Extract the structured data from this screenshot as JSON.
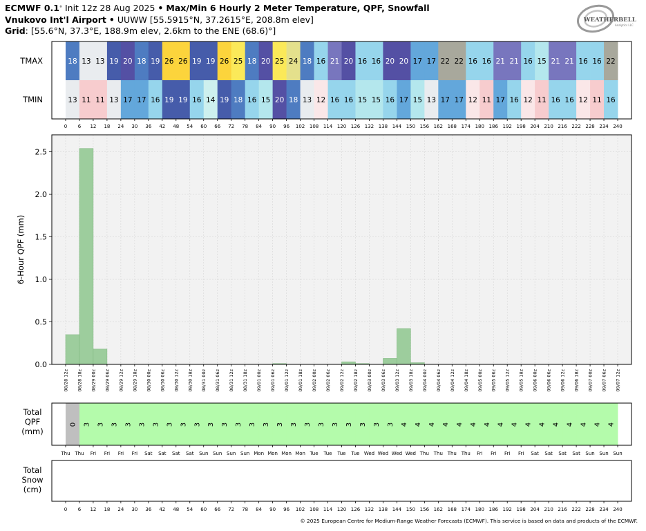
{
  "header": {
    "model": "ECMWF 0.1",
    "init": "Init 12z 28 Aug 2025",
    "product": "Max/Min 6 Hourly 2 Meter Temperature,  QPF,  Snowfall",
    "station_name": "Vnukovo Int'l Airport",
    "station_id": "UUWW",
    "station_coords": "[55.5915°N, 37.2615°E, 208.8m elev]",
    "grid_label": "Grid",
    "grid_info": "[55.6°N, 37.3°E, 188.9m elev, 2.6km to the ENE (68.6)°]"
  },
  "logo": {
    "text": "WEATHERBELL",
    "sub": "Analytics LLC"
  },
  "footer": "© 2025 European Centre for Medium-Range Weather Forecasts (ECMWF). This service is based on data and products of the ECMWF.",
  "colors": {
    "qpf_bar": "#9dcd9d",
    "qpf_bar_edge": "#7fb77f",
    "total_qpf_fill": "#b4fbab",
    "total_qpf_zero": "#bfbfbf"
  },
  "chart_data": [
    {
      "type": "heatmap",
      "rows": [
        "TMAX",
        "TMIN"
      ],
      "x": [
        6,
        12,
        18,
        24,
        30,
        36,
        42,
        48,
        54,
        60,
        66,
        72,
        78,
        84,
        90,
        96,
        102,
        108,
        114,
        120,
        126,
        132,
        138,
        144,
        150,
        156,
        162,
        168,
        174,
        180,
        186,
        192,
        198,
        204,
        210,
        216,
        222,
        228,
        234,
        240
      ],
      "tmax": [
        18,
        13,
        13,
        19,
        20,
        18,
        19,
        26,
        26,
        19,
        19,
        26,
        25,
        18,
        20,
        25,
        24,
        18,
        16,
        21,
        20,
        16,
        16,
        20,
        20,
        17,
        17,
        22,
        22,
        16,
        16,
        21,
        21,
        16,
        15,
        21,
        21,
        16,
        16,
        22
      ],
      "tmin": [
        13,
        11,
        11,
        13,
        17,
        17,
        16,
        19,
        19,
        16,
        14,
        19,
        18,
        16,
        15,
        20,
        18,
        13,
        12,
        16,
        16,
        15,
        15,
        16,
        17,
        15,
        13,
        17,
        17,
        12,
        11,
        17,
        16,
        12,
        11,
        16,
        16,
        12,
        11,
        16
      ],
      "xticks": [
        0,
        6,
        12,
        18,
        24,
        30,
        36,
        42,
        48,
        54,
        60,
        66,
        72,
        78,
        84,
        90,
        96,
        102,
        108,
        114,
        120,
        126,
        132,
        138,
        144,
        150,
        156,
        162,
        168,
        174,
        180,
        186,
        192,
        198,
        204,
        210,
        216,
        222,
        228,
        234,
        240
      ]
    },
    {
      "type": "bar",
      "ylabel": "6-Hour QPF (mm)",
      "ylim": [
        0,
        2.7
      ],
      "yticks": [
        0.0,
        0.5,
        1.0,
        1.5,
        2.0,
        2.5
      ],
      "ytick_labels": [
        "0.0",
        "0.5",
        "1.0",
        "1.5",
        "2.0",
        "2.5"
      ],
      "grid": true,
      "x": [
        6,
        12,
        18,
        24,
        30,
        36,
        42,
        48,
        54,
        60,
        66,
        72,
        78,
        84,
        90,
        96,
        102,
        108,
        114,
        120,
        126,
        132,
        138,
        144,
        150,
        156,
        162,
        168,
        174,
        180,
        186,
        192,
        198,
        204,
        210,
        216,
        222,
        228,
        234,
        240
      ],
      "values": [
        0.35,
        2.54,
        0.18,
        0,
        0,
        0,
        0,
        0,
        0,
        0,
        0,
        0,
        0,
        0,
        0,
        0.01,
        0,
        0,
        0,
        0,
        0.03,
        0.01,
        0,
        0.07,
        0.42,
        0.02,
        0,
        0,
        0,
        0,
        0,
        0,
        0,
        0,
        0,
        0,
        0,
        0,
        0,
        0
      ],
      "xtick_labels": [
        "08/28 12z",
        "08/28 18z",
        "08/29 00z",
        "08/29 06z",
        "08/29 12z",
        "08/29 18z",
        "08/30 00z",
        "08/30 06z",
        "08/30 12z",
        "08/30 18z",
        "08/31 00z",
        "08/31 06z",
        "08/31 12z",
        "08/31 18z",
        "09/01 00z",
        "09/01 06z",
        "09/01 12z",
        "09/01 18z",
        "09/02 00z",
        "09/02 06z",
        "09/02 12z",
        "09/02 18z",
        "09/03 00z",
        "09/03 06z",
        "09/03 12z",
        "09/03 18z",
        "09/04 00z",
        "09/04 06z",
        "09/04 12z",
        "09/04 18z",
        "09/05 00z",
        "09/05 06z",
        "09/05 12z",
        "09/05 18z",
        "09/06 00z",
        "09/06 06z",
        "09/06 12z",
        "09/06 18z",
        "09/07 00z",
        "09/07 06z",
        "09/07 12z"
      ]
    },
    {
      "type": "table",
      "ylabel": "Total\nQPF\n(mm)",
      "x": [
        6,
        12,
        18,
        24,
        30,
        36,
        42,
        48,
        54,
        60,
        66,
        72,
        78,
        84,
        90,
        96,
        102,
        108,
        114,
        120,
        126,
        132,
        138,
        144,
        150,
        156,
        162,
        168,
        174,
        180,
        186,
        192,
        198,
        204,
        210,
        216,
        222,
        228,
        234,
        240
      ],
      "values": [
        0,
        3,
        3,
        3,
        3,
        3,
        3,
        3,
        3,
        3,
        3,
        3,
        3,
        3,
        3,
        3,
        3,
        3,
        3,
        3,
        3,
        3,
        3,
        3,
        4,
        4,
        4,
        4,
        4,
        4,
        4,
        4,
        4,
        4,
        4,
        4,
        4,
        4,
        4,
        4
      ],
      "xtick_labels": [
        "Thu",
        "Thu",
        "Fri",
        "Fri",
        "Fri",
        "Fri",
        "Sat",
        "Sat",
        "Sat",
        "Sat",
        "Sun",
        "Sun",
        "Sun",
        "Sun",
        "Mon",
        "Mon",
        "Mon",
        "Mon",
        "Tue",
        "Tue",
        "Tue",
        "Tue",
        "Wed",
        "Wed",
        "Wed",
        "Wed",
        "Thu",
        "Thu",
        "Thu",
        "Thu",
        "Fri",
        "Fri",
        "Fri",
        "Fri",
        "Sat",
        "Sat",
        "Sat",
        "Sat",
        "Sun",
        "Sun",
        "Sun"
      ]
    },
    {
      "type": "table",
      "ylabel": "Total\nSnow\n(cm)",
      "values": [],
      "xticks": [
        0,
        6,
        12,
        18,
        24,
        30,
        36,
        42,
        48,
        54,
        60,
        66,
        72,
        78,
        84,
        90,
        96,
        102,
        108,
        114,
        120,
        126,
        132,
        138,
        144,
        150,
        156,
        162,
        168,
        174,
        180,
        186,
        192,
        198,
        204,
        210,
        216,
        222,
        228,
        234,
        240
      ]
    }
  ]
}
